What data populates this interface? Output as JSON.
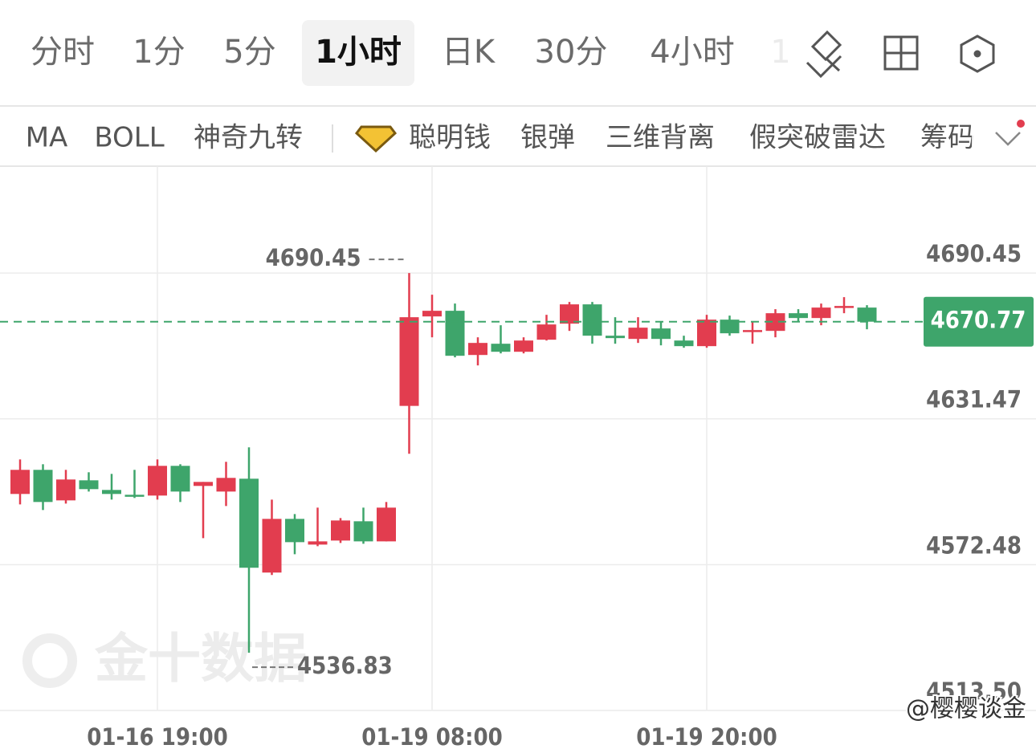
{
  "tabs": [
    "分时",
    "1分",
    "5分",
    "1小时",
    "日K",
    "30分",
    "4小时",
    "1"
  ],
  "indicators": [
    "MA",
    "BOLL",
    "神奇九转",
    "聪明钱",
    "银弹",
    "三维背离",
    "假突破雷达",
    "筹码"
  ],
  "chart_data": {
    "type": "candlestick",
    "categories": [
      null,
      null,
      null,
      null,
      null,
      null,
      "01-16 19:00",
      null,
      null,
      null,
      null,
      null,
      null,
      null,
      null,
      null,
      null,
      null,
      "01-19 08:00",
      null,
      null,
      null,
      null,
      null,
      null,
      null,
      null,
      null,
      null,
      null,
      "01-19 20:00",
      null,
      null,
      null,
      null,
      null,
      null,
      null
    ],
    "open": [
      4601.08,
      4610.83,
      4598.48,
      4606.6,
      4602.7,
      4600.75,
      4600.43,
      4612.45,
      4604.33,
      4602.05,
      4607.25,
      4569.28,
      4591.0,
      4580.6,
      4582.23,
      4590.03,
      4581.9,
      4636.7,
      4672.9,
      4675.18,
      4657.3,
      4661.85,
      4658.6,
      4663.48,
      4669.98,
      4677.78,
      4665.1,
      4663.8,
      4668.03,
      4663.15,
      4660.88,
      4671.6,
      4666.73,
      4667.05,
      4674.2,
      4672.25,
      4676.8,
      4676.48
    ],
    "high": [
      4615.05,
      4613.1,
      4610.83,
      4609.85,
      4609.2,
      4610.83,
      4615.05,
      4613.1,
      4605.95,
      4614.08,
      4619.93,
      4598.8,
      4592.95,
      4595.55,
      4591.33,
      4595.55,
      4597.83,
      4690.45,
      4681.68,
      4678.1,
      4664.45,
      4669.33,
      4664.45,
      4673.55,
      4678.75,
      4678.75,
      4672.58,
      4672.58,
      4670.95,
      4665.1,
      4673.55,
      4673.23,
      4670.95,
      4675.83,
      4675.83,
      4678.1,
      4680.7,
      4677.45
    ],
    "low": [
      4596.85,
      4594.58,
      4597.18,
      4602.05,
      4598.8,
      4599.45,
      4598.8,
      4597.83,
      4583.2,
      4596.2,
      4536.83,
      4568.3,
      4576.7,
      4579.95,
      4581.25,
      4580.93,
      4581.9,
      4617.33,
      4664.45,
      4656.33,
      4653.08,
      4657.95,
      4657.95,
      4663.15,
      4667.05,
      4661.85,
      4661.85,
      4662.18,
      4661.2,
      4660.23,
      4660.23,
      4665.1,
      4661.85,
      4664.45,
      4670.95,
      4669.33,
      4674.2,
      4667.7
    ],
    "close": [
      4610.83,
      4597.83,
      4606.93,
      4603.03,
      4601.08,
      4600.1,
      4612.45,
      4602.05,
      4605.95,
      4607.58,
      4571.23,
      4591.0,
      4581.58,
      4581.9,
      4590.35,
      4581.9,
      4595.55,
      4672.58,
      4675.18,
      4656.98,
      4662.18,
      4658.6,
      4663.15,
      4669.65,
      4677.78,
      4665.1,
      4664.13,
      4668.35,
      4663.8,
      4660.88,
      4671.6,
      4666.08,
      4667.38,
      4674.2,
      4672.25,
      4676.48,
      4677.13,
      4670.77
    ],
    "up_color": "#e23d4f",
    "down_color": "#3ea56b",
    "ylim": [
      4513.5,
      4733.68
    ],
    "yticks": [
      4690.45,
      4631.47,
      4572.48,
      {
        "value": 4513.5,
        "label": "4513.50"
      }
    ],
    "grid": true
  },
  "watermark": "金十数据",
  "signature": "@樱樱谈金"
}
